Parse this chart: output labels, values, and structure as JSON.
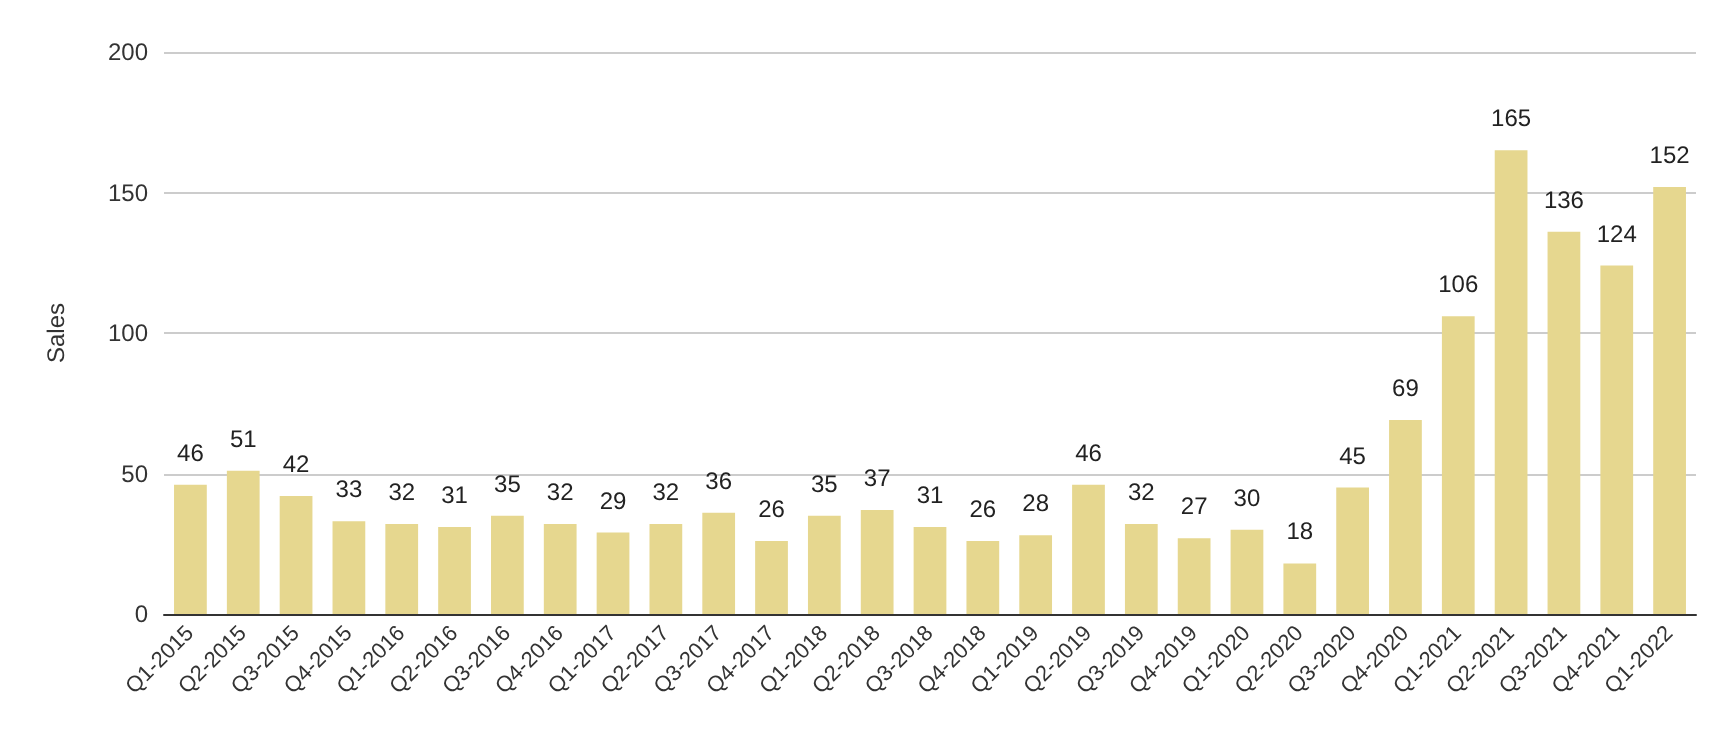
{
  "chart_data": {
    "type": "bar",
    "ylabel": "Sales",
    "categories": [
      "Q1-2015",
      "Q2-2015",
      "Q3-2015",
      "Q4-2015",
      "Q1-2016",
      "Q2-2016",
      "Q3-2016",
      "Q4-2016",
      "Q1-2017",
      "Q2-2017",
      "Q3-2017",
      "Q4-2017",
      "Q1-2018",
      "Q2-2018",
      "Q3-2018",
      "Q4-2018",
      "Q1-2019",
      "Q2-2019",
      "Q3-2019",
      "Q4-2019",
      "Q1-2020",
      "Q2-2020",
      "Q3-2020",
      "Q4-2020",
      "Q1-2021",
      "Q2-2021",
      "Q3-2021",
      "Q4-2021",
      "Q1-2022"
    ],
    "values": [
      46,
      51,
      42,
      33,
      32,
      31,
      35,
      32,
      29,
      32,
      36,
      26,
      35,
      37,
      31,
      26,
      28,
      46,
      32,
      27,
      30,
      18,
      45,
      69,
      106,
      165,
      136,
      124,
      152
    ],
    "color": "#e6d78f",
    "ylim": [
      0,
      200
    ],
    "yticks": [
      0,
      50,
      100,
      150,
      200
    ],
    "grid": "y",
    "data_labels": true
  }
}
